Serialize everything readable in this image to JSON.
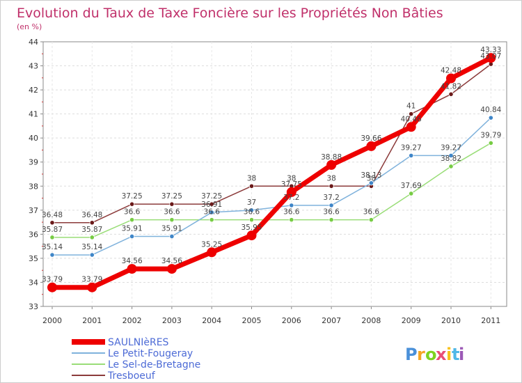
{
  "chart_data": {
    "type": "line",
    "title": "Evolution du Taux de Taxe Foncière sur les Propriétés Non Bâties",
    "subtitle": "(en %)",
    "xlabel": "",
    "ylabel": "",
    "x": [
      "2000",
      "2001",
      "2002",
      "2003",
      "2004",
      "2005",
      "2006",
      "2007",
      "2008",
      "2009",
      "2010",
      "2011"
    ],
    "ylim": [
      33,
      44
    ],
    "yticks": [
      "33",
      "34",
      "35",
      "36",
      "37",
      "38",
      "39",
      "40",
      "41",
      "42",
      "43",
      "44"
    ],
    "grid": true,
    "legend_position": "bottom-left",
    "series": [
      {
        "name": "SAULNIèRES",
        "color": "#ee0000",
        "point_color": "#ee0000",
        "values": [
          33.79,
          33.79,
          34.56,
          34.56,
          35.25,
          35.95,
          37.75,
          38.88,
          39.66,
          40.46,
          42.48,
          43.33
        ],
        "labels": [
          "33.79",
          "33.79",
          "34.56",
          "34.56",
          "35.25",
          "35.95",
          "37.75",
          "38.88",
          "39.66",
          "40.46",
          "42.48",
          "43.33"
        ]
      },
      {
        "name": "Le Petit-Fougeray",
        "color": "#7fb2dc",
        "point_color": "#3f86c8",
        "values": [
          35.14,
          35.14,
          35.91,
          35.91,
          36.91,
          37,
          37.2,
          37.2,
          38.13,
          39.27,
          39.27,
          40.84
        ],
        "labels": [
          "35.14",
          "35.14",
          "35.91",
          "35.91",
          "36.91",
          "37",
          "37.2",
          "37.2",
          "38.13",
          "39.27",
          "39.27",
          "40.84"
        ]
      },
      {
        "name": "Le Sel-de-Bretagne",
        "color": "#99dd77",
        "point_color": "#77cc44",
        "values": [
          35.87,
          35.87,
          36.6,
          36.6,
          36.6,
          36.6,
          36.6,
          36.6,
          36.6,
          37.69,
          38.82,
          39.79
        ],
        "labels": [
          "35.87",
          "35.87",
          "36.6",
          "36.6",
          "36.6",
          "36.6",
          "36.6",
          "36.6",
          "36.6",
          "37.69",
          "38.82",
          "39.79"
        ]
      },
      {
        "name": "Tresboeuf",
        "color": "#8b3a3a",
        "point_color": "#6b1a1a",
        "values": [
          36.48,
          36.48,
          37.25,
          37.25,
          37.25,
          38,
          38,
          38,
          38,
          41,
          41.82,
          43.07
        ],
        "labels": [
          "36.48",
          "36.48",
          "37.25",
          "37.25",
          "37.25",
          "38",
          "38",
          "38",
          "38",
          "41",
          "41.82",
          "43.07"
        ]
      }
    ]
  },
  "brand": {
    "letters": [
      "P",
      "r",
      "o",
      "x",
      "i",
      "t",
      "i"
    ],
    "colors": [
      "#4a90d9",
      "#f5a623",
      "#7ed321",
      "#e94e77",
      "#f8c21c",
      "#50b8e7",
      "#9b59b6"
    ]
  }
}
